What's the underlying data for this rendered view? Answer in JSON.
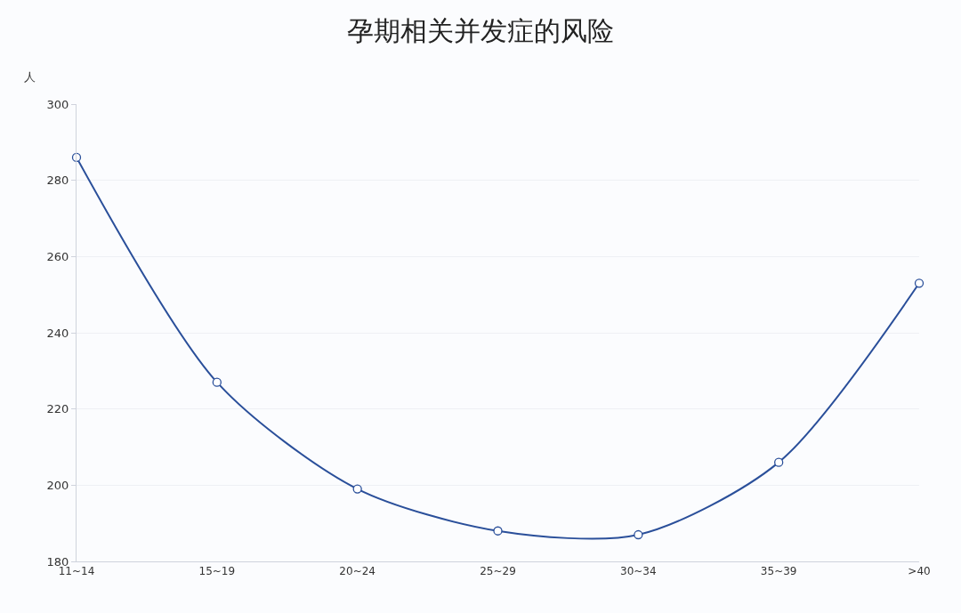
{
  "chart_data": {
    "type": "line",
    "title": "孕期相关并发症的风险",
    "ylabel": "人",
    "categories": [
      "11~14",
      "15~19",
      "20~24",
      "25~29",
      "30~34",
      "35~39",
      ">40"
    ],
    "series": [
      {
        "color": "#2a4f9a",
        "values": [
          286,
          227,
          199,
          188,
          187,
          206,
          253
        ]
      }
    ],
    "ylim": [
      180,
      300
    ],
    "yticks": [
      180,
      200,
      220,
      240,
      260,
      280,
      300
    ],
    "grid": "y",
    "marker": "circle",
    "line_style": "solid",
    "legend": false
  }
}
